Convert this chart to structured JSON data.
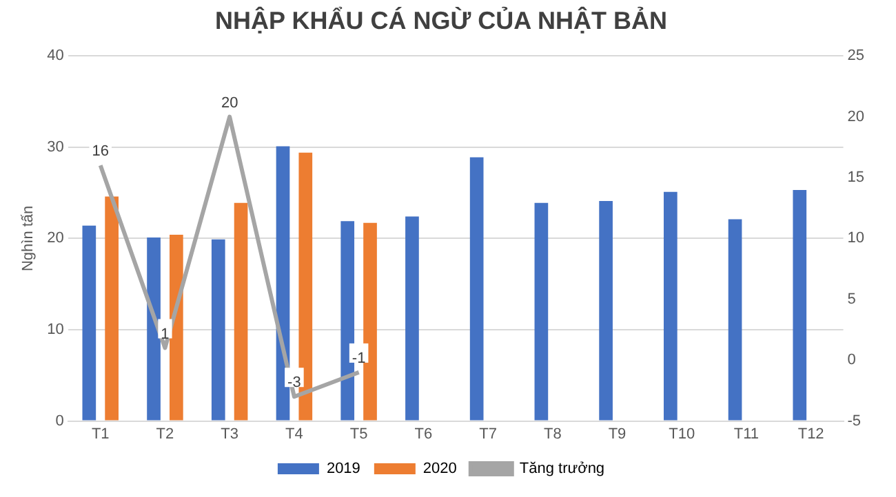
{
  "chart_data": {
    "type": "bar",
    "title": "NHẬP KHẨU CÁ NGỪ CỦA NHẬT BẢN",
    "ylabel": "Nghìn tấn",
    "categories": [
      "T1",
      "T2",
      "T3",
      "T4",
      "T5",
      "T6",
      "T7",
      "T8",
      "T9",
      "T10",
      "T11",
      "T12"
    ],
    "series": [
      {
        "name": "2019",
        "color": "#4472c4",
        "values": [
          21.4,
          20.1,
          19.9,
          30.1,
          21.9,
          22.4,
          28.9,
          23.9,
          24.1,
          25.1,
          22.1,
          25.3
        ]
      },
      {
        "name": "2020",
        "color": "#ed7d31",
        "values": [
          24.6,
          20.4,
          23.9,
          29.4,
          21.7,
          null,
          null,
          null,
          null,
          null,
          null,
          null
        ]
      },
      {
        "name": "Tăng trưởng",
        "type": "line",
        "axis": "y2",
        "color": "#a5a5a5",
        "values": [
          16,
          1,
          20,
          -3,
          -1,
          null,
          null,
          null,
          null,
          null,
          null,
          null
        ],
        "value_labels": [
          "16",
          "1",
          "20",
          "-3",
          "-1",
          null,
          null,
          null,
          null,
          null,
          null,
          null
        ]
      }
    ],
    "ylim": [
      0,
      40
    ],
    "yticks": [
      0,
      10,
      20,
      30,
      40
    ],
    "y2lim": [
      -5,
      25
    ],
    "y2ticks": [
      -5,
      0,
      5,
      10,
      15,
      20,
      25
    ],
    "grid": "y",
    "legend": "bottom",
    "marker": "none",
    "line_style": "solid"
  }
}
